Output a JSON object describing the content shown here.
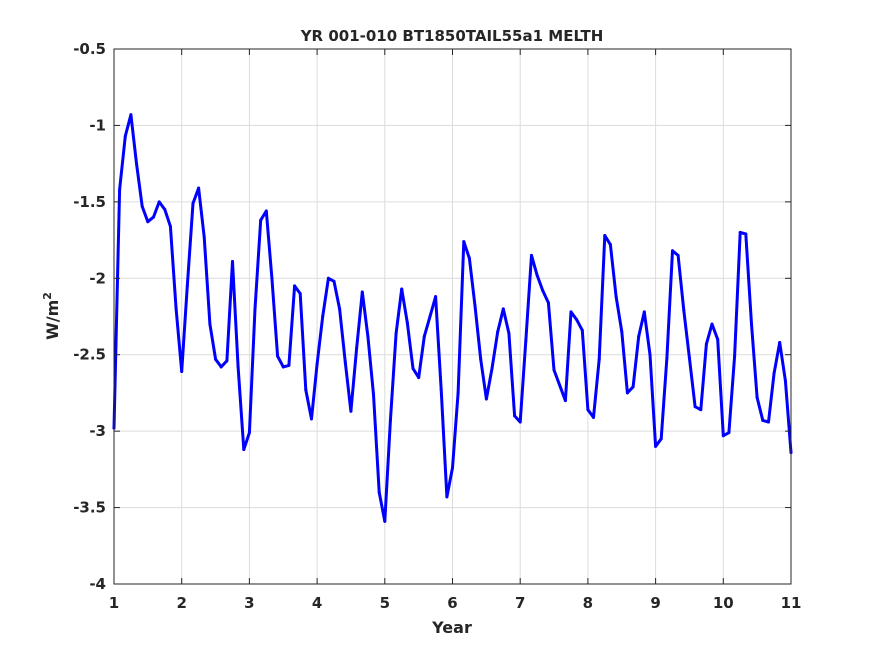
{
  "chart_data": {
    "type": "line",
    "title": "YR 001-010 BT1850TAIL55a1 MELTH",
    "xlabel": "Year",
    "ylabel": "W/m",
    "ylabel_superscript": "2",
    "xlim": [
      1,
      11
    ],
    "ylim": [
      -4,
      -0.5
    ],
    "xticks": [
      "1",
      "2",
      "3",
      "4",
      "5",
      "6",
      "7",
      "8",
      "9",
      "10",
      "11"
    ],
    "yticks": [
      "-4",
      "-3.5",
      "-3",
      "-2.5",
      "-2",
      "-1.5",
      "-1",
      "-0.5"
    ],
    "grid": true,
    "line_color": "#0000ff",
    "series": [
      {
        "x": [
          1.0,
          1.083,
          1.167,
          1.25,
          1.333,
          1.417,
          1.5,
          1.583,
          1.667,
          1.75,
          1.833,
          1.917,
          2.0,
          2.083,
          2.167,
          2.25,
          2.333,
          2.417,
          2.5,
          2.583,
          2.667,
          2.75,
          2.833,
          2.917,
          3.0,
          3.083,
          3.167,
          3.25,
          3.333,
          3.417,
          3.5,
          3.583,
          3.667,
          3.75,
          3.833,
          3.917,
          4.0,
          4.083,
          4.167,
          4.25,
          4.333,
          4.417,
          4.5,
          4.583,
          4.667,
          4.75,
          4.833,
          4.917,
          5.0,
          5.083,
          5.167,
          5.25,
          5.333,
          5.417,
          5.5,
          5.583,
          5.667,
          5.75,
          5.833,
          5.917,
          6.0,
          6.083,
          6.167,
          6.25,
          6.333,
          6.417,
          6.5,
          6.583,
          6.667,
          6.75,
          6.833,
          6.917,
          7.0,
          7.083,
          7.167,
          7.25,
          7.333,
          7.417,
          7.5,
          7.583,
          7.667,
          7.75,
          7.833,
          7.917,
          8.0,
          8.083,
          8.167,
          8.25,
          8.333,
          8.417,
          8.5,
          8.583,
          8.667,
          8.75,
          8.833,
          8.917,
          9.0,
          9.083,
          9.167,
          9.25,
          9.333,
          9.417,
          9.5,
          9.583,
          9.667,
          9.75,
          9.833,
          9.917,
          10.0,
          10.083,
          10.167,
          10.25,
          10.333,
          10.417,
          10.5,
          10.583,
          10.667,
          10.75,
          10.833,
          10.917,
          11.0
        ],
        "y": [
          -2.98,
          -1.42,
          -1.07,
          -0.93,
          -1.25,
          -1.53,
          -1.63,
          -1.6,
          -1.5,
          -1.55,
          -1.66,
          -2.2,
          -2.61,
          -2.05,
          -1.51,
          -1.41,
          -1.73,
          -2.3,
          -2.53,
          -2.58,
          -2.54,
          -1.89,
          -2.58,
          -3.12,
          -3.01,
          -2.2,
          -1.62,
          -1.56,
          -2.0,
          -2.51,
          -2.58,
          -2.57,
          -2.05,
          -2.1,
          -2.73,
          -2.92,
          -2.56,
          -2.25,
          -2.0,
          -2.02,
          -2.2,
          -2.55,
          -2.87,
          -2.46,
          -2.09,
          -2.38,
          -2.76,
          -3.4,
          -3.59,
          -2.93,
          -2.36,
          -2.07,
          -2.29,
          -2.59,
          -2.65,
          -2.38,
          -2.25,
          -2.12,
          -2.73,
          -3.43,
          -3.24,
          -2.75,
          -1.76,
          -1.87,
          -2.18,
          -2.53,
          -2.79,
          -2.59,
          -2.35,
          -2.2,
          -2.36,
          -2.9,
          -2.94,
          -2.41,
          -1.85,
          -1.98,
          -2.08,
          -2.16,
          -2.6,
          -2.7,
          -2.8,
          -2.22,
          -2.27,
          -2.34,
          -2.86,
          -2.91,
          -2.53,
          -1.72,
          -1.78,
          -2.12,
          -2.35,
          -2.75,
          -2.71,
          -2.38,
          -2.22,
          -2.5,
          -3.1,
          -3.05,
          -2.52,
          -1.82,
          -1.85,
          -2.21,
          -2.52,
          -2.84,
          -2.86,
          -2.43,
          -2.3,
          -2.4,
          -3.03,
          -3.01,
          -2.51,
          -1.7,
          -1.71,
          -2.3,
          -2.78,
          -2.93,
          -2.94,
          -2.62,
          -2.42,
          -2.67,
          -3.14
        ]
      }
    ]
  }
}
